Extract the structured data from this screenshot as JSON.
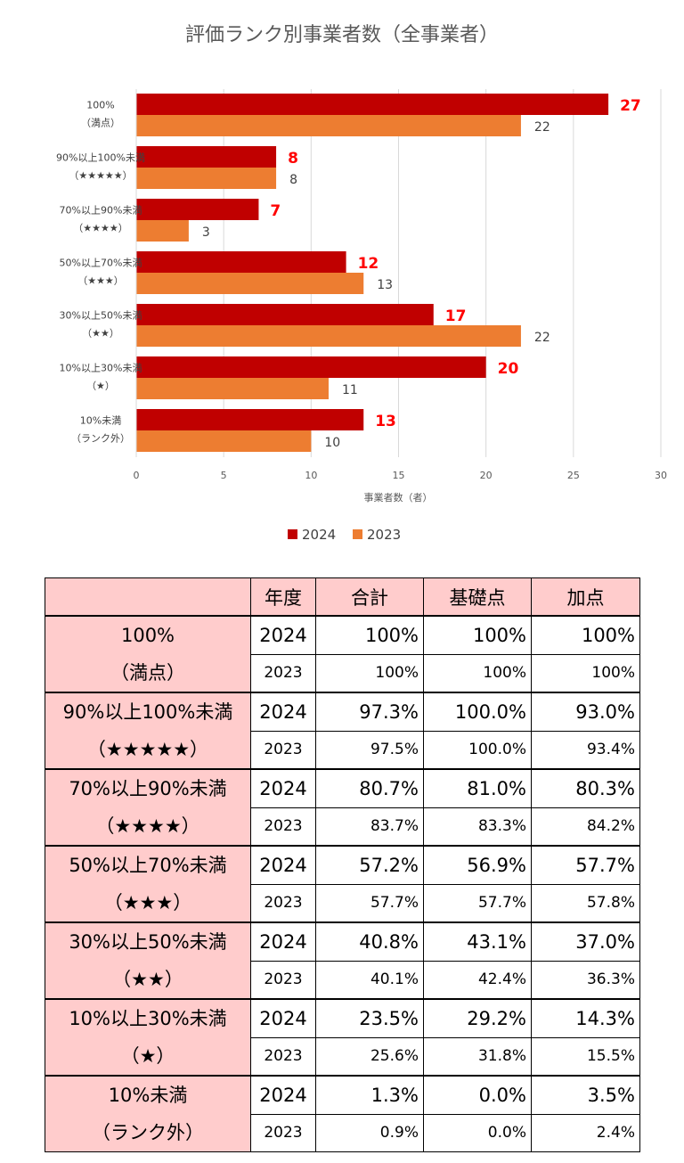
{
  "chart_data": {
    "type": "bar",
    "orientation": "horizontal",
    "title": "評価ランク別事業者数（全事業者）",
    "xlabel": "事業者数（者）",
    "xlim": [
      0,
      30
    ],
    "x_ticks": [
      "0",
      "5",
      "10",
      "15",
      "20",
      "25",
      "30"
    ],
    "grid": true,
    "legend_position": "bottom",
    "categories": [
      [
        "100%",
        "（満点）"
      ],
      [
        "90%以上100%未満",
        "（★★★★★）"
      ],
      [
        "70%以上90%未満",
        "（★★★★）"
      ],
      [
        "50%以上70%未満",
        "（★★★）"
      ],
      [
        "30%以上50%未満",
        "（★★）"
      ],
      [
        "10%以上30%未満",
        "（★）"
      ],
      [
        "10%未満",
        "（ランク外）"
      ]
    ],
    "series": [
      {
        "name": "2024",
        "color": "#c00000",
        "label_color": "#ff0000",
        "values": [
          27,
          8,
          7,
          12,
          17,
          20,
          13
        ]
      },
      {
        "name": "2023",
        "color": "#ed7d31",
        "label_color": "#404040",
        "values": [
          22,
          8,
          3,
          13,
          22,
          11,
          10
        ]
      }
    ]
  },
  "table": {
    "headers": [
      "",
      "年度",
      "合計",
      "基礎点",
      "加点"
    ],
    "groups": [
      {
        "rank": "100%",
        "sub": "（満点）",
        "rows": [
          [
            "2024",
            "100%",
            "100%",
            "100%"
          ],
          [
            "2023",
            "100%",
            "100%",
            "100%"
          ]
        ]
      },
      {
        "rank": "90%以上100%未満",
        "sub": "（★★★★★）",
        "rows": [
          [
            "2024",
            "97.3%",
            "100.0%",
            "93.0%"
          ],
          [
            "2023",
            "97.5%",
            "100.0%",
            "93.4%"
          ]
        ]
      },
      {
        "rank": "70%以上90%未満",
        "sub": "（★★★★）",
        "rows": [
          [
            "2024",
            "80.7%",
            "81.0%",
            "80.3%"
          ],
          [
            "2023",
            "83.7%",
            "83.3%",
            "84.2%"
          ]
        ]
      },
      {
        "rank": "50%以上70%未満",
        "sub": "（★★★）",
        "rows": [
          [
            "2024",
            "57.2%",
            "56.9%",
            "57.7%"
          ],
          [
            "2023",
            "57.7%",
            "57.7%",
            "57.8%"
          ]
        ]
      },
      {
        "rank": "30%以上50%未満",
        "sub": "（★★）",
        "rows": [
          [
            "2024",
            "40.8%",
            "43.1%",
            "37.0%"
          ],
          [
            "2023",
            "40.1%",
            "42.4%",
            "36.3%"
          ]
        ]
      },
      {
        "rank": "10%以上30%未満",
        "sub": "（★）",
        "rows": [
          [
            "2024",
            "23.5%",
            "29.2%",
            "14.3%"
          ],
          [
            "2023",
            "25.6%",
            "31.8%",
            "15.5%"
          ]
        ]
      },
      {
        "rank": "10%未満",
        "sub": "（ランク外）",
        "rows": [
          [
            "2024",
            "1.3%",
            "0.0%",
            "3.5%"
          ],
          [
            "2023",
            "0.9%",
            "0.0%",
            "2.4%"
          ]
        ]
      }
    ]
  }
}
